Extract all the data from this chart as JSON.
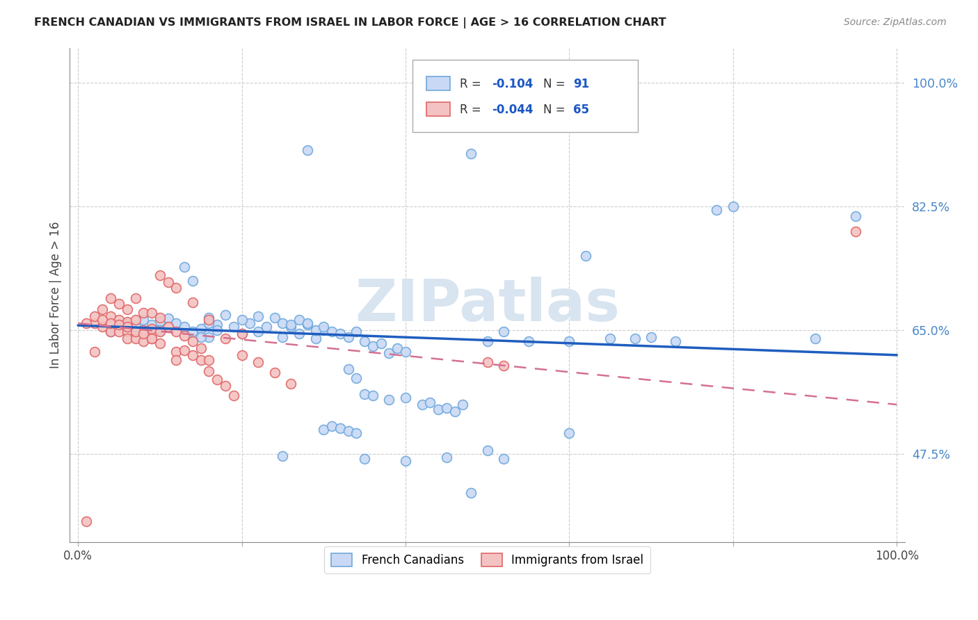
{
  "title": "FRENCH CANADIAN VS IMMIGRANTS FROM ISRAEL IN LABOR FORCE | AGE > 16 CORRELATION CHART",
  "source": "Source: ZipAtlas.com",
  "ylabel": "In Labor Force | Age > 16",
  "ytick_labels": [
    "47.5%",
    "65.0%",
    "82.5%",
    "100.0%"
  ],
  "ytick_values": [
    0.475,
    0.65,
    0.825,
    1.0
  ],
  "xlim": [
    -0.01,
    1.01
  ],
  "ylim": [
    0.35,
    1.05
  ],
  "legend_r1": "-0.104",
  "legend_n1": "91",
  "legend_r2": "-0.044",
  "legend_n2": "65",
  "color_blue_face": "#c9d9f5",
  "color_blue_edge": "#6fa8dc",
  "color_pink_face": "#f4c2c2",
  "color_pink_edge": "#e06666",
  "color_blue_line": "#1f5dbf",
  "color_pink_line": "#d47090",
  "watermark_color": "#d8e4f0",
  "blue_trend_y0": 0.657,
  "blue_trend_y1": 0.615,
  "pink_trend_y0": 0.66,
  "pink_trend_y1": 0.545,
  "blue_x": [
    0.04,
    0.06,
    0.07,
    0.08,
    0.09,
    0.1,
    0.1,
    0.11,
    0.12,
    0.13,
    0.14,
    0.15,
    0.16,
    0.16,
    0.17,
    0.18,
    0.19,
    0.2,
    0.21,
    0.22,
    0.23,
    0.24,
    0.25,
    0.26,
    0.27,
    0.28,
    0.29,
    0.3,
    0.31,
    0.32,
    0.33,
    0.34,
    0.35,
    0.36,
    0.37,
    0.38,
    0.39,
    0.4,
    0.28,
    0.48,
    0.5,
    0.52,
    0.55,
    0.6,
    0.62,
    0.65,
    0.68,
    0.7,
    0.73,
    0.78,
    0.8,
    0.9,
    0.95,
    0.33,
    0.34,
    0.35,
    0.36,
    0.38,
    0.4,
    0.42,
    0.43,
    0.44,
    0.45,
    0.46,
    0.47,
    0.5,
    0.52,
    0.6,
    0.3,
    0.31,
    0.32,
    0.33,
    0.34,
    0.13,
    0.14,
    0.15,
    0.16,
    0.17,
    0.2,
    0.22,
    0.25,
    0.26,
    0.27,
    0.28,
    0.29,
    0.3,
    0.25,
    0.35,
    0.4,
    0.45,
    0.48
  ],
  "blue_y": [
    0.648,
    0.66,
    0.655,
    0.665,
    0.658,
    0.663,
    0.65,
    0.667,
    0.66,
    0.655,
    0.648,
    0.652,
    0.668,
    0.64,
    0.658,
    0.672,
    0.655,
    0.645,
    0.66,
    0.648,
    0.655,
    0.668,
    0.64,
    0.655,
    0.645,
    0.658,
    0.638,
    0.65,
    0.648,
    0.645,
    0.64,
    0.648,
    0.635,
    0.628,
    0.632,
    0.618,
    0.625,
    0.62,
    0.905,
    0.9,
    0.635,
    0.648,
    0.635,
    0.635,
    0.755,
    0.638,
    0.638,
    0.64,
    0.635,
    0.82,
    0.825,
    0.638,
    0.812,
    0.595,
    0.582,
    0.56,
    0.558,
    0.552,
    0.555,
    0.545,
    0.548,
    0.538,
    0.54,
    0.535,
    0.545,
    0.48,
    0.468,
    0.505,
    0.51,
    0.515,
    0.512,
    0.508,
    0.505,
    0.74,
    0.72,
    0.64,
    0.66,
    0.65,
    0.665,
    0.67,
    0.66,
    0.658,
    0.665,
    0.66,
    0.65,
    0.655,
    0.472,
    0.468,
    0.465,
    0.47,
    0.42
  ],
  "pink_x": [
    0.01,
    0.02,
    0.02,
    0.03,
    0.03,
    0.04,
    0.04,
    0.04,
    0.05,
    0.05,
    0.05,
    0.06,
    0.06,
    0.06,
    0.06,
    0.07,
    0.07,
    0.07,
    0.08,
    0.08,
    0.08,
    0.09,
    0.09,
    0.09,
    0.1,
    0.1,
    0.1,
    0.11,
    0.11,
    0.12,
    0.12,
    0.12,
    0.13,
    0.13,
    0.14,
    0.14,
    0.15,
    0.15,
    0.16,
    0.16,
    0.17,
    0.18,
    0.19,
    0.2,
    0.22,
    0.24,
    0.26,
    0.1,
    0.12,
    0.14,
    0.16,
    0.18,
    0.2,
    0.5,
    0.52,
    0.01,
    0.02,
    0.03,
    0.04,
    0.05,
    0.06,
    0.07,
    0.08,
    0.09,
    0.95
  ],
  "pink_y": [
    0.38,
    0.66,
    0.62,
    0.68,
    0.655,
    0.695,
    0.67,
    0.648,
    0.688,
    0.665,
    0.648,
    0.68,
    0.662,
    0.648,
    0.638,
    0.695,
    0.665,
    0.638,
    0.675,
    0.65,
    0.635,
    0.675,
    0.652,
    0.638,
    0.668,
    0.648,
    0.632,
    0.655,
    0.718,
    0.648,
    0.62,
    0.608,
    0.642,
    0.622,
    0.635,
    0.615,
    0.625,
    0.608,
    0.608,
    0.592,
    0.58,
    0.572,
    0.558,
    0.645,
    0.605,
    0.59,
    0.575,
    0.728,
    0.71,
    0.69,
    0.665,
    0.638,
    0.615,
    0.605,
    0.6,
    0.66,
    0.67,
    0.665,
    0.66,
    0.658,
    0.655,
    0.648,
    0.645,
    0.638,
    0.79
  ]
}
